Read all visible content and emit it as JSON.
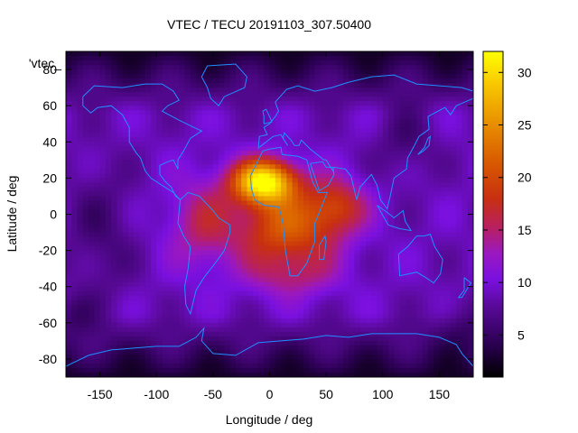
{
  "chart_data": {
    "type": "heatmap",
    "title": "VTEC / TECU 20191103_307.50400",
    "xlabel": "Longitude / deg",
    "ylabel": "Latitude / deg",
    "xlim": [
      -180,
      180
    ],
    "ylim": [
      -90,
      90
    ],
    "x_ticks": [
      "-150",
      "-100",
      "-50",
      "0",
      "50",
      "100",
      "150"
    ],
    "x_tick_values": [
      -150,
      -100,
      -50,
      0,
      50,
      100,
      150
    ],
    "y_ticks": [
      "-80",
      "-60",
      "-40",
      "-20",
      "0",
      "20",
      "40",
      "60",
      "80"
    ],
    "y_tick_values": [
      -80,
      -60,
      -40,
      -20,
      0,
      20,
      40,
      60,
      80
    ],
    "colorbar": {
      "range": [
        1,
        32
      ],
      "ticks": [
        "5",
        "10",
        "15",
        "20",
        "25",
        "30"
      ],
      "tick_values": [
        5,
        10,
        15,
        20,
        25,
        30
      ],
      "palette": [
        "#000000",
        "#4b0082",
        "#8a2be2",
        "#a020f0",
        "#c02050",
        "#d03010",
        "#e06000",
        "#f0a000",
        "#ffd000",
        "#ffff00"
      ]
    },
    "key_label": "'vtec_",
    "grid": false,
    "description_values": {
      "peak_vtec": 31,
      "peak_lon": -5,
      "peak_lat": 18,
      "background_vtec": 9,
      "polar_vtec": 4
    },
    "coastline_color": "#1e90ff"
  }
}
